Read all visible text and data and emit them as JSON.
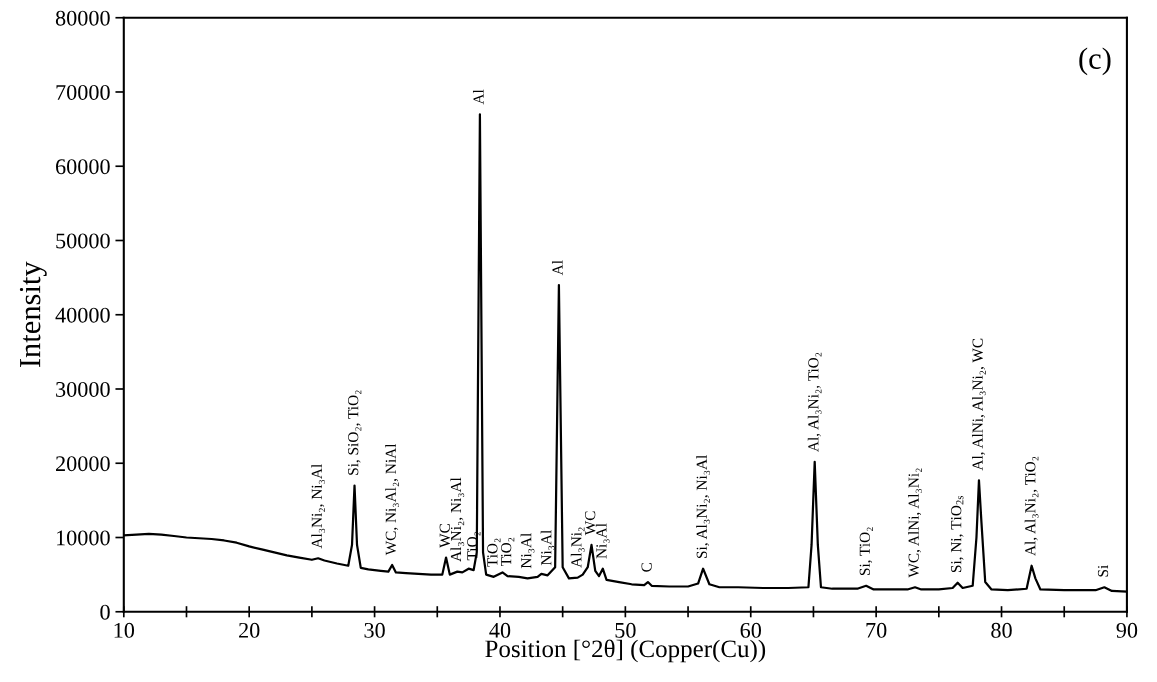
{
  "chart_data": {
    "type": "line",
    "xlabel": "Position [°2θ] (Copper(Cu))",
    "ylabel": "Intensity",
    "xlim": [
      10,
      90
    ],
    "ylim": [
      0,
      80000
    ],
    "xticks": [
      10,
      {
        "value": 15,
        "label": null
      },
      20,
      {
        "value": 25,
        "label": null
      },
      30,
      {
        "value": 35,
        "label": null
      },
      40,
      {
        "value": 45,
        "label": null
      },
      50,
      {
        "value": 55,
        "label": null
      },
      60,
      {
        "value": 65,
        "label": null
      },
      70,
      {
        "value": 75,
        "label": null
      },
      80,
      {
        "value": 85,
        "label": null
      },
      90
    ],
    "yticks": [
      0,
      10000,
      20000,
      30000,
      40000,
      50000,
      60000,
      70000,
      80000
    ],
    "grid": false,
    "legend": false,
    "marker": "none",
    "line_style": "solid",
    "series": [
      {
        "color": "#000000",
        "x": [
          10,
          11,
          12,
          13,
          14,
          15,
          16,
          17,
          18,
          19,
          20,
          21,
          22,
          23,
          24,
          25,
          25.5,
          26,
          27,
          27.9,
          28.2,
          28.4,
          28.6,
          28.9,
          29.5,
          30.5,
          31.1,
          31.4,
          31.7,
          32.5,
          33.5,
          34.5,
          35.4,
          35.7,
          36.0,
          36.6,
          37.0,
          37.5,
          37.9,
          38.15,
          38.4,
          38.65,
          38.9,
          39.5,
          40.2,
          40.6,
          41.5,
          42.2,
          43,
          43.3,
          43.8,
          44.4,
          44.7,
          45.0,
          45.5,
          46.2,
          46.6,
          47.0,
          47.3,
          47.6,
          47.9,
          48.2,
          48.5,
          49.5,
          50.5,
          51.5,
          51.8,
          52.1,
          53.5,
          55,
          55.8,
          56.2,
          56.7,
          57.5,
          59,
          61,
          63,
          64.6,
          64.85,
          65.1,
          65.35,
          65.6,
          66.5,
          68.5,
          69.2,
          69.8,
          71,
          72.5,
          73.1,
          73.6,
          75,
          76.1,
          76.5,
          76.9,
          77.7,
          78.0,
          78.2,
          78.4,
          78.7,
          79.2,
          80.5,
          82,
          82.4,
          82.7,
          83.1,
          85,
          87.5,
          88.2,
          88.8,
          90
        ],
        "values": [
          10300,
          10400,
          10500,
          10400,
          10200,
          10000,
          9900,
          9800,
          9600,
          9300,
          8800,
          8400,
          8000,
          7600,
          7300,
          7000,
          7200,
          6900,
          6500,
          6200,
          9000,
          17000,
          9000,
          5900,
          5700,
          5500,
          5400,
          6300,
          5300,
          5200,
          5100,
          5000,
          5000,
          7300,
          5000,
          5400,
          5300,
          5800,
          5600,
          8000,
          67000,
          8000,
          5000,
          4700,
          5300,
          4800,
          4700,
          4500,
          4700,
          5100,
          4900,
          6000,
          44000,
          6000,
          4500,
          4600,
          5000,
          6000,
          9000,
          5500,
          4800,
          5800,
          4300,
          4000,
          3700,
          3600,
          4000,
          3500,
          3400,
          3400,
          3800,
          5800,
          3700,
          3300,
          3300,
          3200,
          3200,
          3300,
          9000,
          20200,
          9000,
          3300,
          3100,
          3100,
          3500,
          3000,
          3000,
          3000,
          3300,
          3000,
          3000,
          3200,
          3900,
          3200,
          3500,
          10000,
          17700,
          12000,
          4000,
          3000,
          2900,
          3100,
          6200,
          4500,
          3000,
          2900,
          2900,
          3300,
          2800,
          2700
        ]
      }
    ],
    "annotations": [
      "(c)",
      {
        "text": "Al₃Ni₂, Ni₃Al",
        "x": 25.5,
        "y": 7200
      },
      {
        "text": "Si, SiO₂, TiO₂",
        "x": 28.4,
        "y": 17000
      },
      {
        "text": "WC, Ni₃Al₂, NiAl",
        "x": 31.4,
        "y": 6300
      },
      {
        "text": "WC",
        "x": 35.7,
        "y": 7300
      },
      {
        "text": "Al₃Ni₂, Ni₃Al",
        "x": 36.6,
        "y": 5400
      },
      {
        "text": "TiO₂",
        "x": 37.9,
        "y": 5600
      },
      {
        "text": "Al",
        "x": 38.4,
        "y": 67000
      },
      {
        "text": "TiO₂",
        "x": 39.5,
        "y": 4700
      },
      {
        "text": "TiO₂",
        "x": 40.6,
        "y": 4800
      },
      {
        "text": "Ni₃Al",
        "x": 42.2,
        "y": 4500
      },
      {
        "text": "Ni₃Al",
        "x": 43.8,
        "y": 4900
      },
      {
        "text": "Al",
        "x": 44.7,
        "y": 44000
      },
      {
        "text": "Al₃Ni₂",
        "x": 46.2,
        "y": 4600
      },
      {
        "text": "WC",
        "x": 47.3,
        "y": 9000
      },
      {
        "text": "Ni₃Al",
        "x": 48.2,
        "y": 5800
      },
      {
        "text": "C",
        "x": 51.8,
        "y": 4000
      },
      {
        "text": "Si, Al₃Ni₂, Ni₃Al",
        "x": 56.2,
        "y": 5800
      },
      {
        "text": "Al, Al₃Ni₂, TiO₂",
        "x": 65.1,
        "y": 20200
      },
      {
        "text": "Si, TiO₂",
        "x": 69.2,
        "y": 3500
      },
      {
        "text": "WC, AlNi, Al₃Ni₂",
        "x": 73.1,
        "y": 3300
      },
      {
        "text": "Si, Ni, TiO$_{2s}$",
        "x": 76.5,
        "y": 3900
      },
      {
        "text": "Al, AlNi, Al₃Ni₂, WC",
        "x": 78.2,
        "y": 17700
      },
      {
        "text": "Al, Al₃Ni₂, TiO₂",
        "x": 82.4,
        "y": 6200
      },
      {
        "text": "Si",
        "x": 88.2,
        "y": 3300
      }
    ]
  }
}
